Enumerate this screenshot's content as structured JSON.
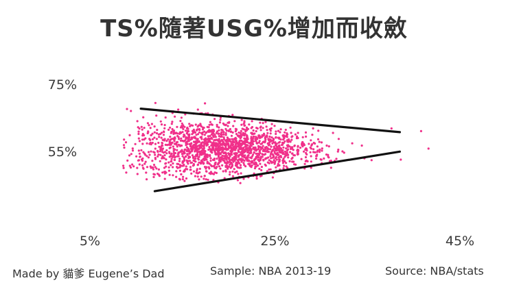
{
  "chart_data": {
    "type": "scatter",
    "title": "TS%隨著USG%增加而收斂",
    "xlabel": "",
    "ylabel": "",
    "x_ticks": [
      {
        "value": 5,
        "label": "5%"
      },
      {
        "value": 25,
        "label": "25%"
      },
      {
        "value": 45,
        "label": "45%"
      }
    ],
    "y_ticks": [
      {
        "value": 75,
        "label": "75%"
      },
      {
        "value": 55,
        "label": "55%"
      }
    ],
    "xlim": [
      5,
      45
    ],
    "ylim": [
      37.8,
      80.7
    ],
    "grid": false,
    "legend": "none",
    "point_color": "#f0308a",
    "line_color": "#111111",
    "envelope_lines": [
      {
        "x": [
          10.5,
          38.5
        ],
        "y": [
          67.7,
          60.7
        ]
      },
      {
        "x": [
          12.0,
          38.5
        ],
        "y": [
          43.1,
          54.9
        ]
      }
    ],
    "cloud": {
      "n": 1800,
      "x_mean": 19.5,
      "x_sd": 5.0,
      "x_min": 8.5,
      "x_max": 39.5,
      "y_mean": 55.5,
      "y_sd": 3.9,
      "y_min": 45.5,
      "y_max": 71.3,
      "outliers": [
        [
          40.8,
          61.0
        ],
        [
          41.6,
          55.8
        ],
        [
          38.6,
          52.5
        ],
        [
          37.6,
          61.8
        ]
      ]
    }
  },
  "footer": {
    "made_by": "Made by 貓爹 Eugene’s Dad",
    "sample": "Sample: NBA 2013-19",
    "source": "Source: NBA/stats"
  }
}
